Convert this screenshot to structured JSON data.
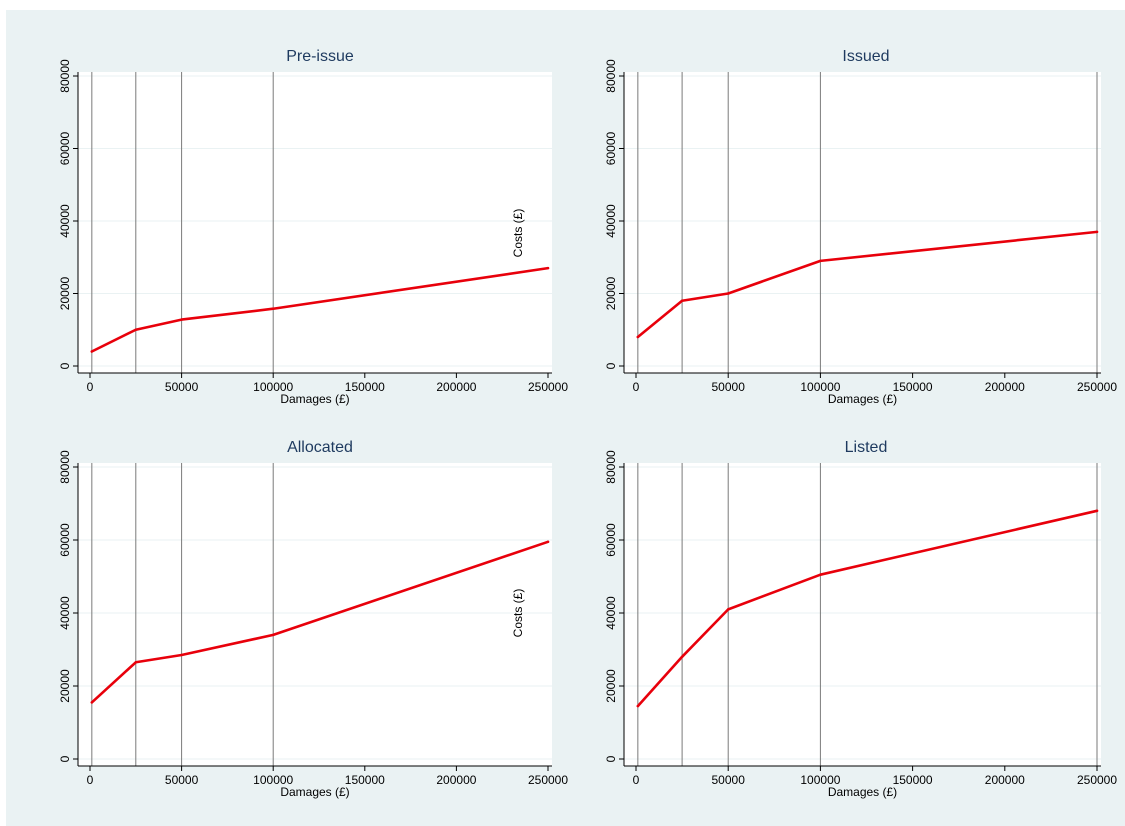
{
  "chart_data": [
    {
      "type": "line",
      "title": "Pre-issue",
      "xlabel": "Damages (£)",
      "ylabel": "",
      "xlim": [
        0,
        250000
      ],
      "ylim": [
        0,
        80000
      ],
      "xticks": [
        0,
        50000,
        100000,
        150000,
        200000,
        250000
      ],
      "yticks": [
        0,
        20000,
        40000,
        60000,
        80000
      ],
      "vlines": [
        1000,
        25000,
        50000,
        100000
      ],
      "series": [
        {
          "color": "#e8000b",
          "x": [
            1000,
            25000,
            50000,
            100000,
            250000
          ],
          "y": [
            4000,
            10000,
            12800,
            15800,
            27000
          ]
        }
      ]
    },
    {
      "type": "line",
      "title": "Issued",
      "xlabel": "Damages (£)",
      "ylabel": "Costs (£)",
      "xlim": [
        0,
        250000
      ],
      "ylim": [
        0,
        80000
      ],
      "xticks": [
        0,
        50000,
        100000,
        150000,
        200000,
        250000
      ],
      "yticks": [
        0,
        20000,
        40000,
        60000,
        80000
      ],
      "vlines": [
        1000,
        25000,
        50000,
        100000,
        250000
      ],
      "series": [
        {
          "color": "#e8000b",
          "x": [
            1000,
            25000,
            50000,
            100000,
            250000
          ],
          "y": [
            8000,
            18000,
            20000,
            29000,
            37000
          ]
        }
      ]
    },
    {
      "type": "line",
      "title": "Allocated",
      "xlabel": "Damages (£)",
      "ylabel": "",
      "xlim": [
        0,
        250000
      ],
      "ylim": [
        0,
        80000
      ],
      "xticks": [
        0,
        50000,
        100000,
        150000,
        200000,
        250000
      ],
      "yticks": [
        0,
        20000,
        40000,
        60000,
        80000
      ],
      "vlines": [
        1000,
        25000,
        50000,
        100000
      ],
      "series": [
        {
          "color": "#e8000b",
          "x": [
            1000,
            25000,
            50000,
            100000,
            250000
          ],
          "y": [
            15500,
            26500,
            28500,
            34000,
            59500
          ]
        }
      ]
    },
    {
      "type": "line",
      "title": "Listed",
      "xlabel": "Damages (£)",
      "ylabel": "Costs (£)",
      "xlim": [
        0,
        250000
      ],
      "ylim": [
        0,
        80000
      ],
      "xticks": [
        0,
        50000,
        100000,
        150000,
        200000,
        250000
      ],
      "yticks": [
        0,
        20000,
        40000,
        60000,
        80000
      ],
      "vlines": [
        1000,
        25000,
        50000,
        100000,
        250000
      ],
      "series": [
        {
          "color": "#e8000b",
          "x": [
            1000,
            25000,
            50000,
            100000,
            250000
          ],
          "y": [
            14500,
            28000,
            41000,
            50500,
            68000
          ]
        }
      ]
    }
  ]
}
